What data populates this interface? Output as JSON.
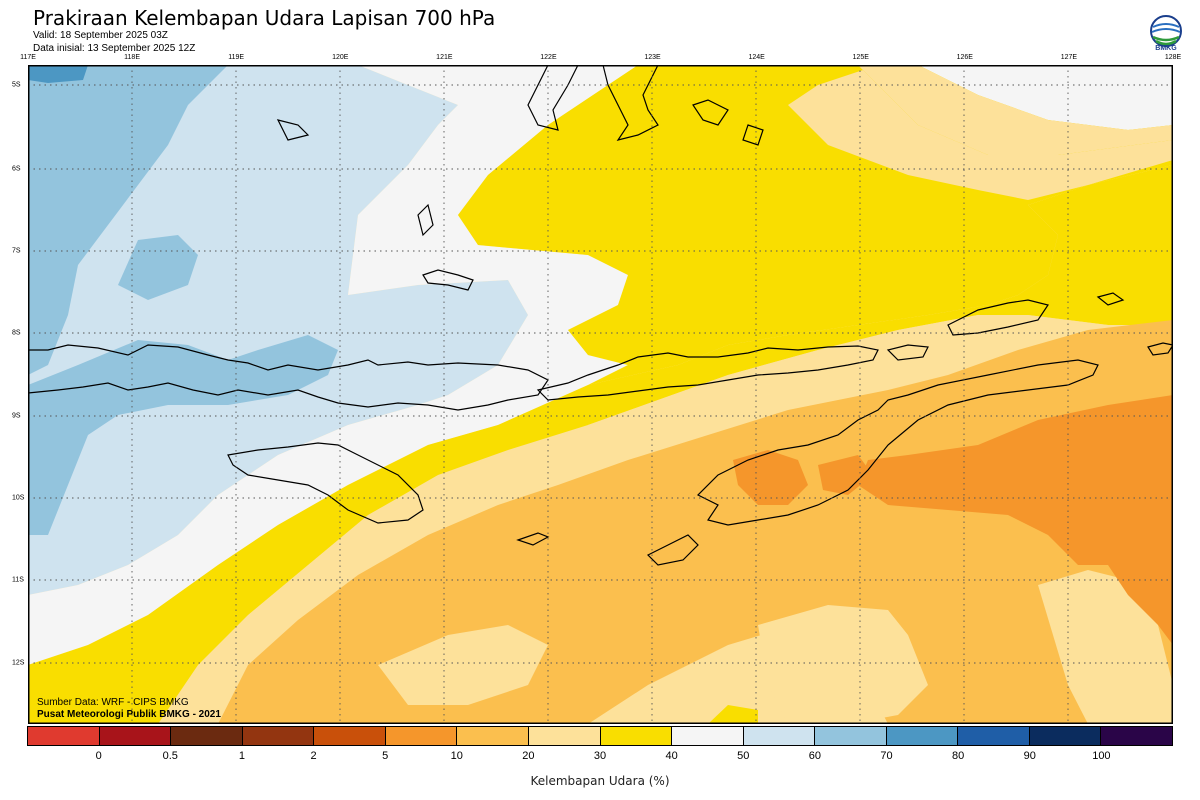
{
  "header": {
    "title": "Prakiraan Kelembapan Udara Lapisan 700 hPa",
    "valid": "Valid: 18 September 2025 03Z",
    "init": "Data inisial: 13 September 2025 12Z"
  },
  "logo": {
    "text": "BMKG",
    "icon": "bmkg-logo-icon"
  },
  "axes": {
    "lon_labels": [
      "117E",
      "118E",
      "119E",
      "120E",
      "121E",
      "122E",
      "123E",
      "124E",
      "125E",
      "126E",
      "127E",
      "128E"
    ],
    "lat_labels": [
      "5S",
      "6S",
      "7S",
      "8S",
      "9S",
      "10S",
      "11S",
      "12S"
    ]
  },
  "source": {
    "line1": "Sumber Data: WRF - CIPS BMKG",
    "line2": "Pusat Meteorologi Publik BMKG - 2021"
  },
  "colorbar": {
    "labels": [
      "0",
      "0.5",
      "1",
      "2",
      "5",
      "10",
      "20",
      "30",
      "40",
      "50",
      "60",
      "70",
      "80",
      "90",
      "100"
    ],
    "colors": [
      "#e03a2f",
      "#a8141a",
      "#6b2a10",
      "#933510",
      "#c9500a",
      "#f5962b",
      "#fbbf4e",
      "#fde19a",
      "#f9de00",
      "#f5f5f5",
      "#cfe3ef",
      "#93c4dd",
      "#4c97c3",
      "#1f5ea7",
      "#0b2c5e",
      "#2a0548"
    ],
    "title": "Kelembapan Udara (%)"
  },
  "map": {
    "lon_range": [
      117,
      128
    ],
    "lat_range": [
      -4.77,
      -12.77
    ],
    "grid": true
  }
}
